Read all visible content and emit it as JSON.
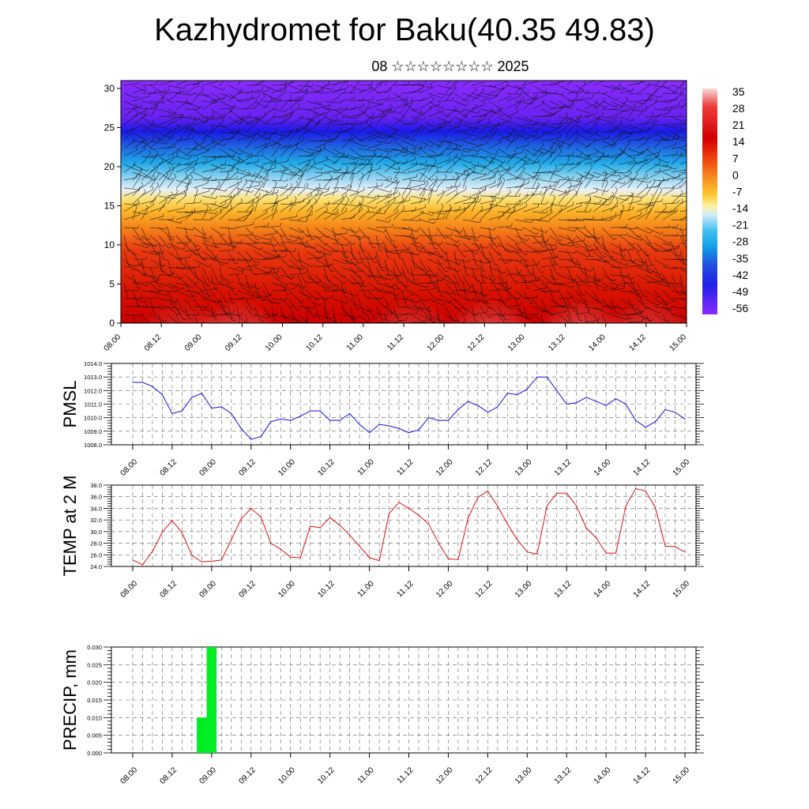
{
  "title": "Kazhydromet for Baku(40.35 49.83)",
  "subtitle": "08 ☆☆☆☆☆☆☆☆ 2025",
  "chart_data": [
    {
      "type": "heatmap",
      "name": "cross-section",
      "x_ticks": [
        "08.00",
        "08.12",
        "09.00",
        "09.12",
        "10.00",
        "10.12",
        "11.00",
        "11.12",
        "12.00",
        "12.12",
        "13.00",
        "13.12",
        "14.00",
        "14.12",
        "15.00"
      ],
      "y_ticks": [
        0,
        5,
        10,
        15,
        20,
        25,
        30
      ],
      "ylim": [
        0,
        31
      ],
      "colorbar_labels": [
        "35",
        "28",
        "21",
        "14",
        "7",
        "0",
        "-7",
        "-14",
        "-21",
        "-28",
        "-35",
        "-42",
        "-49",
        "-56"
      ],
      "colorbar_colors": [
        "#f7d0d0",
        "#ee3030",
        "#d40000",
        "#f04010",
        "#f88018",
        "#fbc028",
        "#fff0a0",
        "#c8e8f8",
        "#60c8f0",
        "#10a8e8",
        "#2060e0",
        "#2020e8",
        "#6020f0",
        "#8a2cff"
      ],
      "description_values_by_level": [
        {
          "height": 1,
          "temp": 28
        },
        {
          "height": 5,
          "temp": 24
        },
        {
          "height": 10,
          "temp": 18
        },
        {
          "height": 15,
          "temp": 6
        },
        {
          "height": 18,
          "temp": -8
        },
        {
          "height": 20,
          "temp": -25
        },
        {
          "height": 23,
          "temp": -42
        },
        {
          "height": 25,
          "temp": -56
        },
        {
          "height": 30,
          "temp": -56
        }
      ],
      "has_wind_barbs": true
    },
    {
      "type": "line",
      "ylabel": "PMSL",
      "color": "#1010e0",
      "ylim": [
        1008.0,
        1014.0
      ],
      "y_tick_labels": [
        "1008.0",
        "1009.0",
        "1010.0",
        "1011.0",
        "1012.0",
        "1013.0",
        "1014.0"
      ],
      "x_ticks": [
        "08.00",
        "08.12",
        "09.00",
        "09.12",
        "10.00",
        "10.12",
        "11.00",
        "11.12",
        "12.00",
        "12.12",
        "13.00",
        "13.12",
        "14.00",
        "14.12",
        "15.00"
      ],
      "values": [
        1012.6,
        1012.6,
        1012.3,
        1011.7,
        1010.3,
        1010.5,
        1011.5,
        1011.8,
        1010.7,
        1010.8,
        1010.3,
        1009.2,
        1008.4,
        1008.6,
        1009.7,
        1009.9,
        1009.8,
        1010.1,
        1010.5,
        1010.5,
        1009.8,
        1009.8,
        1010.3,
        1009.5,
        1008.9,
        1009.5,
        1009.4,
        1009.2,
        1008.9,
        1009.1,
        1010.0,
        1009.8,
        1009.8,
        1010.6,
        1011.2,
        1010.9,
        1010.4,
        1010.8,
        1011.8,
        1011.7,
        1012.1,
        1013.0,
        1013.0,
        1012.0,
        1011.0,
        1011.1,
        1011.5,
        1011.2,
        1010.9,
        1011.4,
        1011.0,
        1009.8,
        1009.3,
        1009.7,
        1010.6,
        1010.4,
        1009.9
      ]
    },
    {
      "type": "line",
      "ylabel": "TEMP at 2 M",
      "color": "#e01010",
      "ylim": [
        24.0,
        38.0
      ],
      "y_tick_labels": [
        "24.0",
        "26.0",
        "28.0",
        "30.0",
        "32.0",
        "34.0",
        "36.0",
        "38.0"
      ],
      "x_ticks": [
        "08.00",
        "08.12",
        "09.00",
        "09.12",
        "10.00",
        "10.12",
        "11.00",
        "11.12",
        "12.00",
        "12.12",
        "13.00",
        "13.12",
        "14.00",
        "14.12",
        "15.00"
      ],
      "values": [
        25.1,
        24.3,
        26.6,
        29.9,
        31.9,
        29.8,
        25.9,
        24.8,
        24.9,
        25.1,
        28.6,
        32.2,
        34.0,
        32.5,
        28.0,
        27.0,
        25.6,
        25.5,
        30.9,
        30.7,
        32.4,
        31.1,
        29.4,
        27.5,
        25.5,
        25.0,
        33.1,
        35.0,
        34.0,
        32.8,
        31.3,
        28.1,
        25.3,
        25.2,
        32.3,
        35.9,
        37.0,
        34.4,
        31.3,
        28.6,
        26.5,
        26.1,
        34.4,
        36.6,
        36.6,
        34.4,
        30.6,
        28.9,
        26.3,
        26.3,
        34.4,
        37.4,
        37.0,
        34.1,
        27.5,
        27.4,
        26.5
      ]
    },
    {
      "type": "bar",
      "ylabel": "PRECIP, mm",
      "color": "#00ee22",
      "ylim": [
        0.0,
        0.03
      ],
      "y_tick_labels": [
        "0.000",
        "0.005",
        "0.010",
        "0.015",
        "0.020",
        "0.025",
        "0.030"
      ],
      "x_ticks": [
        "08.00",
        "08.12",
        "09.00",
        "09.12",
        "10.00",
        "10.12",
        "11.00",
        "11.12",
        "12.00",
        "12.12",
        "13.00",
        "13.12",
        "14.00",
        "14.12",
        "15.00"
      ],
      "values": [
        0,
        0,
        0,
        0,
        0,
        0,
        0,
        0.01,
        0.03,
        0,
        0,
        0,
        0,
        0,
        0,
        0,
        0,
        0,
        0,
        0,
        0,
        0,
        0,
        0,
        0,
        0,
        0,
        0,
        0,
        0,
        0,
        0,
        0,
        0,
        0,
        0,
        0,
        0,
        0,
        0,
        0,
        0,
        0,
        0,
        0,
        0,
        0,
        0,
        0,
        0,
        0,
        0,
        0,
        0,
        0,
        0,
        0
      ]
    }
  ]
}
